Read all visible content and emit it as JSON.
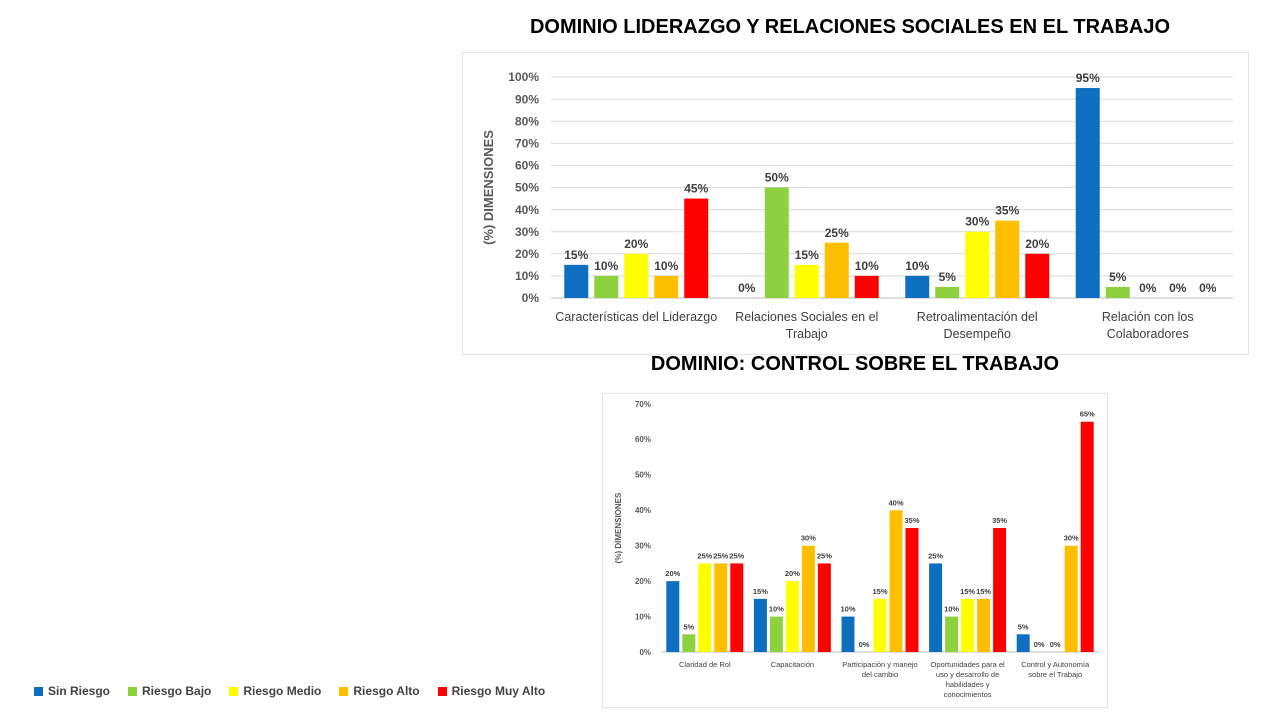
{
  "legend": [
    {
      "name": "Sin Riesgo",
      "color": "#0e6fc0"
    },
    {
      "name": "Riesgo Bajo",
      "color": "#8dd13f"
    },
    {
      "name": "Riesgo Medio",
      "color": "#ffff00"
    },
    {
      "name": "Riesgo Alto",
      "color": "#ffbf00"
    },
    {
      "name": "Riesgo Muy Alto",
      "color": "#ff0000"
    }
  ],
  "chart_data": [
    {
      "type": "bar",
      "title": "DOMINIO LIDERAZGO Y RELACIONES SOCIALES EN EL TRABAJO",
      "ylabel": "(%) DIMENSIONES",
      "ylim": [
        0,
        100
      ],
      "yticks": [
        "0%",
        "10%",
        "20%",
        "30%",
        "40%",
        "50%",
        "60%",
        "70%",
        "80%",
        "90%",
        "100%"
      ],
      "grid": true,
      "categories": [
        [
          "Características del Liderazgo"
        ],
        [
          "Relaciones Sociales en el",
          "Trabajo"
        ],
        [
          "Retroalimentación del",
          "Desempeño"
        ],
        [
          "Relación con los",
          "Colaboradores"
        ]
      ],
      "series": [
        {
          "name": "Sin Riesgo",
          "values": [
            15,
            0,
            10,
            95
          ]
        },
        {
          "name": "Riesgo Bajo",
          "values": [
            10,
            50,
            5,
            5
          ]
        },
        {
          "name": "Riesgo Medio",
          "values": [
            20,
            15,
            30,
            0
          ]
        },
        {
          "name": "Riesgo Alto",
          "values": [
            10,
            25,
            35,
            0
          ]
        },
        {
          "name": "Riesgo Muy Alto",
          "values": [
            45,
            10,
            20,
            0
          ]
        }
      ],
      "labels": [
        [
          "15%",
          "10%",
          "20%",
          "10%",
          "45%"
        ],
        [
          "0%",
          "50%",
          "15%",
          "25%",
          "10%"
        ],
        [
          "10%",
          "5%",
          "30%",
          "35%",
          "20%"
        ],
        [
          "95%",
          "5%",
          "0%",
          "0%",
          "0%"
        ]
      ]
    },
    {
      "type": "bar",
      "title": "DOMINIO: CONTROL SOBRE EL TRABAJO",
      "ylabel": "(%) DIMENSIONES",
      "ylim": [
        0,
        70
      ],
      "yticks": [
        "0%",
        "10%",
        "20%",
        "30%",
        "40%",
        "50%",
        "60%",
        "70%"
      ],
      "grid": false,
      "categories": [
        [
          "Claridad de Rol"
        ],
        [
          "Capacitación"
        ],
        [
          "Participación y manejo",
          "del cambio"
        ],
        [
          "Oportunidades para el",
          "uso y desarrollo de",
          "habilidades y",
          "conocimientos"
        ],
        [
          "Control y Autonomía",
          "sobre el Trabajo"
        ]
      ],
      "series": [
        {
          "name": "Sin Riesgo",
          "values": [
            20,
            15,
            10,
            25,
            5
          ]
        },
        {
          "name": "Riesgo Bajo",
          "values": [
            5,
            10,
            0,
            10,
            0
          ]
        },
        {
          "name": "Riesgo Medio",
          "values": [
            25,
            20,
            15,
            15,
            0
          ]
        },
        {
          "name": "Riesgo Alto",
          "values": [
            25,
            30,
            40,
            15,
            30
          ]
        },
        {
          "name": "Riesgo Muy Alto",
          "values": [
            25,
            25,
            35,
            35,
            65
          ]
        }
      ],
      "labels": [
        [
          "20%",
          "5%",
          "25%",
          "25%",
          "25%"
        ],
        [
          "15%",
          "10%",
          "20%",
          "30%",
          "25%"
        ],
        [
          "10%",
          "0%",
          "15%",
          "40%",
          "35%"
        ],
        [
          "25%",
          "10%",
          "15%",
          "15%",
          "35%"
        ],
        [
          "5%",
          "0%",
          "0%",
          "30%",
          "65%"
        ]
      ]
    }
  ]
}
